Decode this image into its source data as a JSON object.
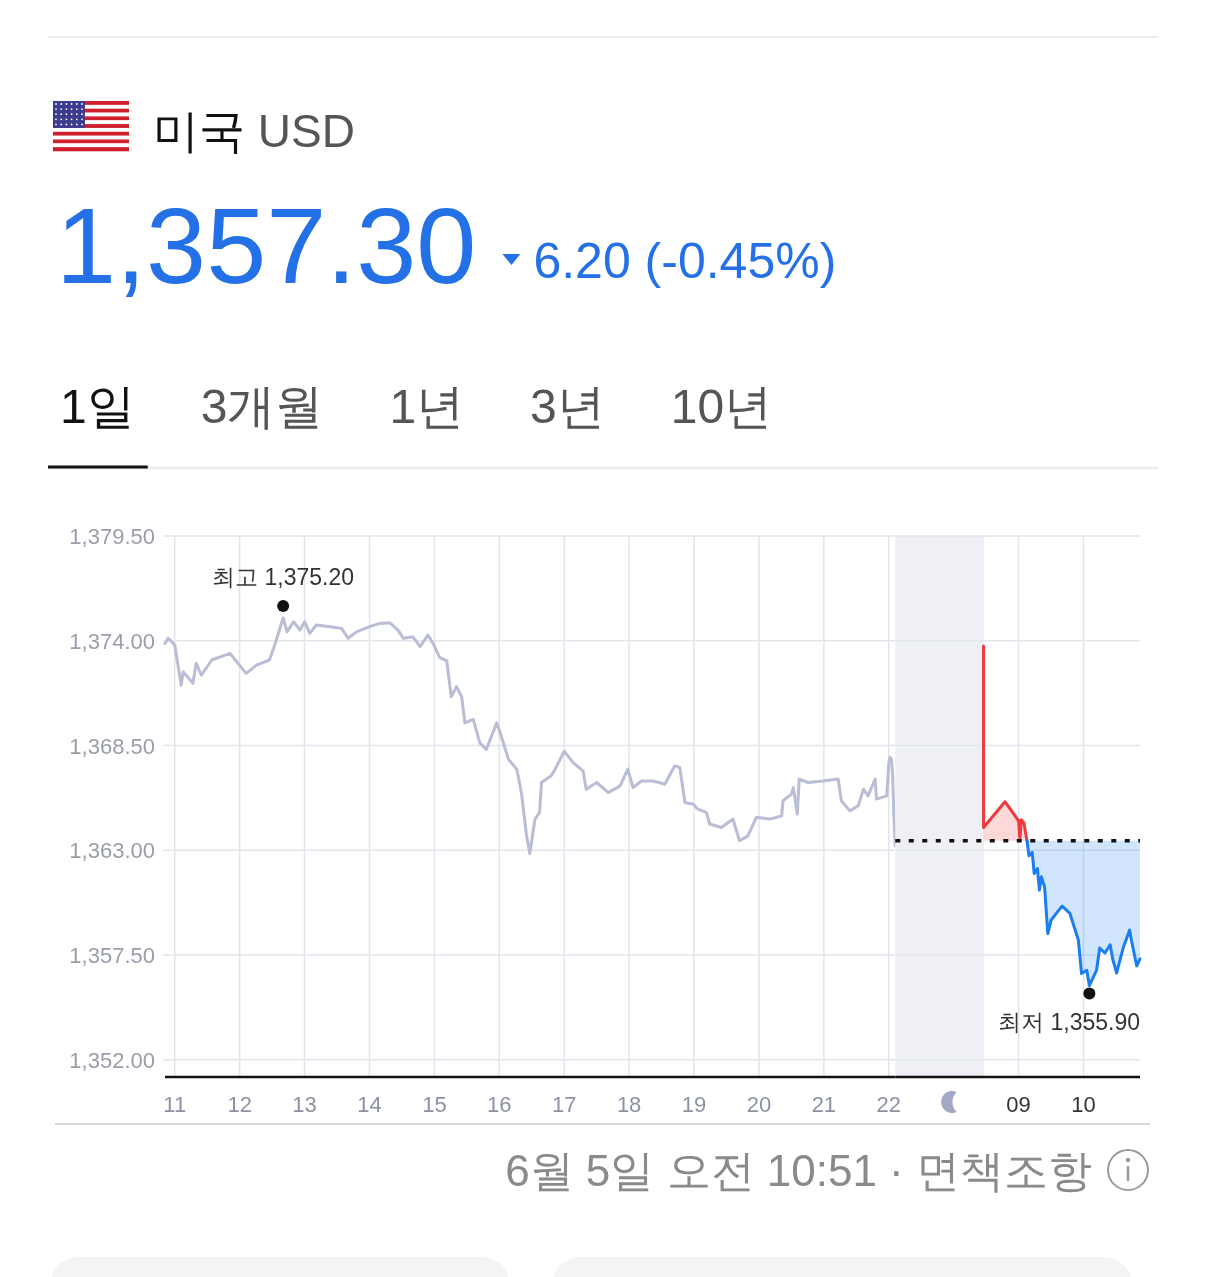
{
  "chart_data": [
    {
      "type": "line",
      "title": "미국 USD",
      "subtitle": "1,357.30",
      "annotations": [
        "6.20 (-0.45%)",
        "1일",
        "3개월",
        "1년",
        "3년",
        "10년",
        {
          "text": "최고 1,375.20",
          "x": 12.67,
          "y": 1375.2
        },
        "6월 5일 오전 10:51 · 면책조항"
      ],
      "xlim": [
        10.85,
        22.1
      ],
      "xticks": [
        11,
        12,
        13,
        14,
        15,
        16,
        17,
        18,
        19,
        20,
        21,
        22
      ],
      "ylim": [
        1351.1,
        1379.5
      ],
      "yticks": [
        {
          "value": 1352,
          "label": "1,352.00"
        },
        {
          "value": 1357.5,
          "label": "1,357.50"
        },
        {
          "value": 1363,
          "label": "1,363.00"
        },
        {
          "value": 1368.5,
          "label": "1,368.50"
        },
        {
          "value": 1374,
          "label": "1,374.00"
        },
        {
          "value": 1379.5,
          "label": "1,379.50"
        }
      ],
      "grid": true,
      "series": [
        {
          "color": "#b9bed6",
          "x": [
            10.85,
            10.9,
            11.0,
            11.1,
            11.13,
            11.28,
            11.33,
            11.41,
            11.57,
            11.85,
            12.1,
            12.26,
            12.46,
            12.54,
            12.67,
            12.73,
            12.83,
            12.93,
            13.0,
            13.08,
            13.18,
            13.39,
            13.57,
            13.67,
            13.8,
            14.0,
            14.16,
            14.31,
            14.44,
            14.52,
            14.67,
            14.78,
            14.9,
            14.98,
            15.08,
            15.19,
            15.26,
            15.34,
            15.42,
            15.47,
            15.6,
            15.7,
            15.8,
            15.96,
            16.03,
            16.14,
            16.27,
            16.34,
            16.42,
            16.47,
            16.55,
            16.62,
            16.65,
            16.8,
            16.86,
            17.0,
            17.14,
            17.29,
            17.34,
            17.5,
            17.68,
            17.86,
            17.98,
            18.06,
            18.19,
            18.37,
            18.55,
            18.7,
            18.78,
            18.86,
            18.99,
            19.06,
            19.19,
            19.24,
            19.42,
            19.6,
            19.7,
            19.83,
            19.96,
            20.17,
            20.35,
            20.37,
            20.5,
            20.53,
            20.59,
            20.62,
            20.76,
            20.99,
            21.22,
            21.27,
            21.4,
            21.53,
            21.61,
            21.68,
            21.79,
            21.81,
            21.97,
            22.0,
            22.02,
            22.04,
            22.06,
            22.08,
            22.1
          ],
          "values": [
            1373.86,
            1374.13,
            1373.78,
            1371.67,
            1372.37,
            1371.77,
            1372.81,
            1372.2,
            1372.99,
            1373.34,
            1372.29,
            1372.72,
            1372.99,
            1373.78,
            1375.2,
            1374.47,
            1375.0,
            1374.56,
            1375.0,
            1374.39,
            1374.83,
            1374.74,
            1374.65,
            1374.13,
            1374.47,
            1374.74,
            1374.91,
            1374.95,
            1374.56,
            1374.13,
            1374.21,
            1373.69,
            1374.3,
            1373.86,
            1373.13,
            1372.95,
            1371.06,
            1371.59,
            1371.06,
            1369.69,
            1369.87,
            1368.64,
            1368.29,
            1369.69,
            1369.0,
            1367.78,
            1367.25,
            1366.03,
            1363.76,
            1362.83,
            1364.64,
            1364.99,
            1366.56,
            1366.91,
            1367.26,
            1368.2,
            1367.59,
            1367.17,
            1366.21,
            1366.56,
            1366.03,
            1366.38,
            1367.26,
            1366.29,
            1366.64,
            1366.64,
            1366.47,
            1367.43,
            1367.35,
            1365.51,
            1365.42,
            1365.16,
            1364.99,
            1364.38,
            1364.2,
            1364.64,
            1363.5,
            1363.76,
            1364.73,
            1364.64,
            1364.81,
            1365.6,
            1365.95,
            1366.29,
            1364.9,
            1366.74,
            1366.56,
            1366.64,
            1366.74,
            1365.6,
            1365.07,
            1365.34,
            1366.21,
            1365.86,
            1366.74,
            1365.69,
            1365.86,
            1367.6,
            1367.88,
            1367.8,
            1366.9,
            1364.64,
            1363.23
          ]
        }
      ]
    },
    {
      "type": "line",
      "annotations": [
        {
          "text": "최저 1,355.90",
          "x": 10.09,
          "y": 1355.9
        }
      ],
      "xlim": [
        7.1,
        10.87
      ],
      "xticks": [
        {
          "value": 9,
          "label": "09"
        },
        10
      ],
      "ylim": [
        1351.1,
        1379.5
      ],
      "yticks": [
        1352,
        1357.5,
        1363,
        1368.5,
        1374,
        1379.5
      ],
      "tick_labels": "x",
      "grid": true,
      "bands": [
        {
          "axis": "x",
          "from": 7.1,
          "to": 8.47,
          "color": "#eff0f5"
        }
      ],
      "series": [
        {
          "color": "#ee3a3f",
          "x": [
            8.46,
            8.46,
            8.79,
            9.0,
            9.02,
            9.04,
            9.08,
            9.13
          ],
          "values": [
            1373.72,
            1364.2,
            1365.55,
            1364.55,
            1363.6,
            1364.6,
            1364.45,
            1363.5
          ],
          "lower": [
            1363.5,
            1363.5,
            1363.5,
            1363.5,
            1363.5,
            1363.5,
            1363.5,
            1363.5
          ],
          "upper": [
            1373.72,
            1364.2,
            1365.55,
            1364.55,
            1363.6,
            1364.6,
            1364.45,
            1363.5
          ]
        },
        {
          "color": "#1b7ef0",
          "x": [
            9.13,
            9.16,
            9.21,
            9.24,
            9.29,
            9.32,
            9.35,
            9.4,
            9.45,
            9.5,
            9.58,
            9.67,
            9.79,
            9.92,
            9.97,
            10.05,
            10.09,
            10.2,
            10.25,
            10.33,
            10.41,
            10.45,
            10.51,
            10.61,
            10.71,
            10.74,
            10.82,
            10.87
          ],
          "values": [
            1363.5,
            1362.71,
            1362.89,
            1361.78,
            1362.04,
            1360.91,
            1361.61,
            1361.08,
            1358.63,
            1359.33,
            1359.69,
            1360.07,
            1359.69,
            1358.29,
            1356.53,
            1356.7,
            1355.9,
            1356.7,
            1357.87,
            1357.61,
            1358.04,
            1357.28,
            1356.56,
            1357.87,
            1358.81,
            1358.24,
            1356.93,
            1357.3
          ],
          "lower": [
            1363.5,
            1362.71,
            1362.89,
            1361.78,
            1362.04,
            1360.91,
            1361.61,
            1361.08,
            1358.63,
            1359.33,
            1359.69,
            1360.07,
            1359.69,
            1358.29,
            1356.53,
            1356.7,
            1355.9,
            1356.7,
            1357.87,
            1357.61,
            1358.04,
            1357.28,
            1356.56,
            1357.87,
            1358.81,
            1358.24,
            1356.93,
            1357.3
          ],
          "upper": [
            1363.5,
            1363.5,
            1363.5,
            1363.5,
            1363.5,
            1363.5,
            1363.5,
            1363.5,
            1363.5,
            1363.5,
            1363.5,
            1363.5,
            1363.5,
            1363.5,
            1363.5,
            1363.5,
            1363.5,
            1363.5,
            1363.5,
            1363.5,
            1363.5,
            1363.5,
            1363.5,
            1363.5,
            1363.5,
            1363.5,
            1363.5,
            1363.5
          ]
        },
        {
          "color": "#111111",
          "line_style": "dotted",
          "x": [
            7.1,
            10.87
          ],
          "values": [
            1363.5,
            1363.5
          ]
        }
      ]
    }
  ]
}
